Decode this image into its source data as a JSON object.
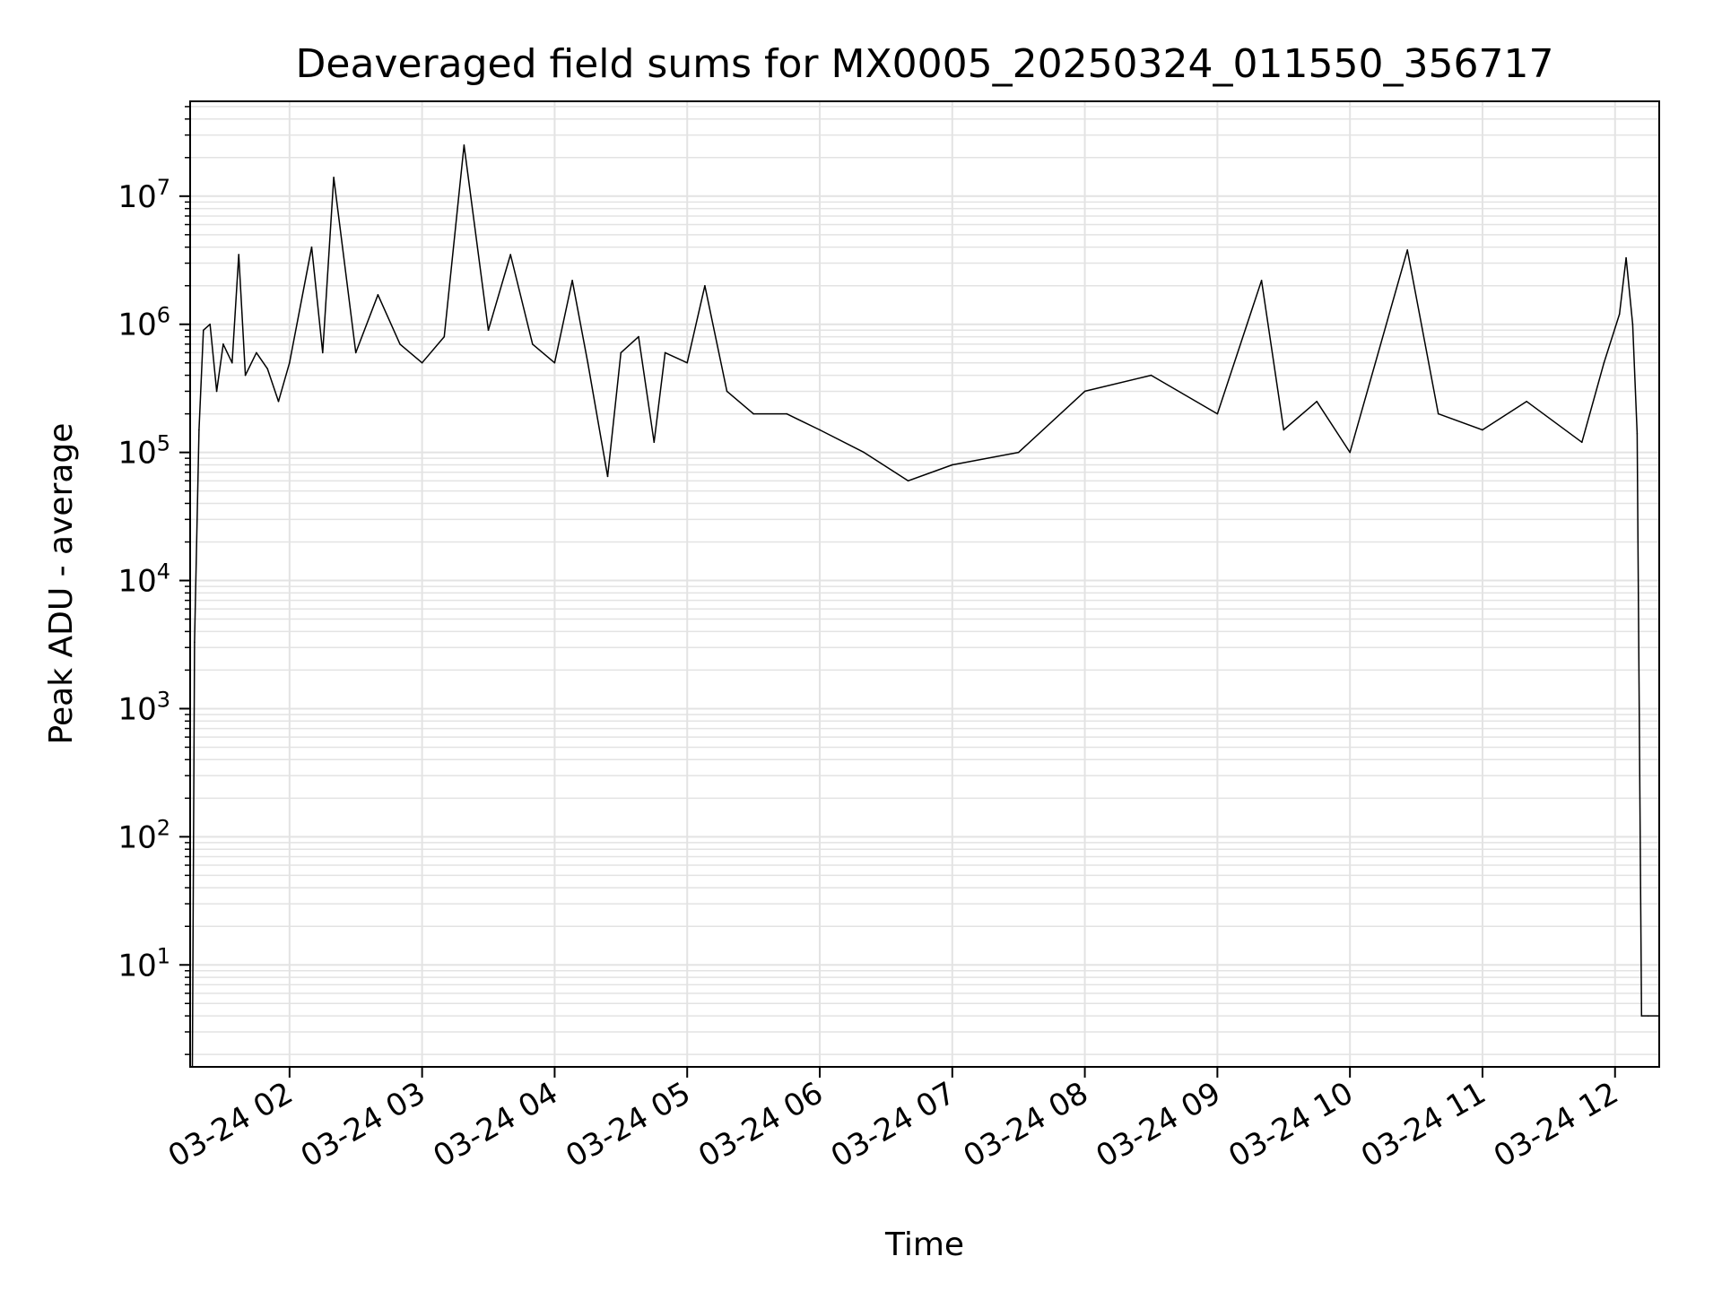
{
  "chart_data": {
    "type": "line",
    "title": "Deaveraged field sums for MX0005_20250324_011550_356717",
    "xlabel": "Time",
    "ylabel": "Peak ADU - average",
    "y_scale": "log",
    "ylim": [
      1.6,
      55000000
    ],
    "xlim": [
      "2025-03-24 01:15",
      "2025-03-24 12:20"
    ],
    "grid": true,
    "x_tick_labels": [
      "03-24 02",
      "03-24 03",
      "03-24 04",
      "03-24 05",
      "03-24 06",
      "03-24 07",
      "03-24 08",
      "03-24 09",
      "03-24 10",
      "03-24 11",
      "03-24 12"
    ],
    "x_tick_times": [
      "2025-03-24 02:00",
      "2025-03-24 03:00",
      "2025-03-24 04:00",
      "2025-03-24 05:00",
      "2025-03-24 06:00",
      "2025-03-24 07:00",
      "2025-03-24 08:00",
      "2025-03-24 09:00",
      "2025-03-24 10:00",
      "2025-03-24 11:00",
      "2025-03-24 12:00"
    ],
    "y_tick_values": [
      10,
      100,
      1000,
      10000,
      100000,
      1000000,
      10000000
    ],
    "y_tick_labels": [
      {
        "base": "10",
        "exp": "1"
      },
      {
        "base": "10",
        "exp": "2"
      },
      {
        "base": "10",
        "exp": "3"
      },
      {
        "base": "10",
        "exp": "4"
      },
      {
        "base": "10",
        "exp": "5"
      },
      {
        "base": "10",
        "exp": "6"
      },
      {
        "base": "10",
        "exp": "7"
      }
    ],
    "series": [
      {
        "color": "#000000",
        "x": [
          "2025-03-24 01:16",
          "2025-03-24 01:17",
          "2025-03-24 01:19",
          "2025-03-24 01:21",
          "2025-03-24 01:24",
          "2025-03-24 01:27",
          "2025-03-24 01:30",
          "2025-03-24 01:34",
          "2025-03-24 01:37",
          "2025-03-24 01:40",
          "2025-03-24 01:45",
          "2025-03-24 01:50",
          "2025-03-24 01:55",
          "2025-03-24 02:00",
          "2025-03-24 02:10",
          "2025-03-24 02:15",
          "2025-03-24 02:20",
          "2025-03-24 02:30",
          "2025-03-24 02:40",
          "2025-03-24 02:50",
          "2025-03-24 03:00",
          "2025-03-24 03:10",
          "2025-03-24 03:19",
          "2025-03-24 03:30",
          "2025-03-24 03:40",
          "2025-03-24 03:50",
          "2025-03-24 04:00",
          "2025-03-24 04:08",
          "2025-03-24 04:15",
          "2025-03-24 04:24",
          "2025-03-24 04:30",
          "2025-03-24 04:38",
          "2025-03-24 04:45",
          "2025-03-24 04:50",
          "2025-03-24 05:00",
          "2025-03-24 05:08",
          "2025-03-24 05:18",
          "2025-03-24 05:30",
          "2025-03-24 05:45",
          "2025-03-24 06:00",
          "2025-03-24 06:20",
          "2025-03-24 06:40",
          "2025-03-24 07:00",
          "2025-03-24 07:30",
          "2025-03-24 08:00",
          "2025-03-24 08:30",
          "2025-03-24 09:00",
          "2025-03-24 09:20",
          "2025-03-24 09:30",
          "2025-03-24 09:45",
          "2025-03-24 10:00",
          "2025-03-24 10:26",
          "2025-03-24 10:40",
          "2025-03-24 11:00",
          "2025-03-24 11:20",
          "2025-03-24 11:45",
          "2025-03-24 11:55",
          "2025-03-24 12:02",
          "2025-03-24 12:05",
          "2025-03-24 12:08",
          "2025-03-24 12:10",
          "2025-03-24 12:12",
          "2025-03-24 12:15",
          "2025-03-24 12:20"
        ],
        "y": [
          1.6,
          3300,
          150000,
          900000,
          1000000,
          300000,
          700000,
          500000,
          3500000,
          400000,
          600000,
          450000,
          250000,
          500000,
          4000000,
          600000,
          14000000,
          600000,
          1700000,
          700000,
          500000,
          800000,
          25000000,
          900000,
          3500000,
          700000,
          500000,
          2200000,
          500000,
          65000,
          600000,
          800000,
          120000,
          600000,
          500000,
          2000000,
          300000,
          200000,
          200000,
          150000,
          100000,
          60000,
          80000,
          100000,
          300000,
          400000,
          200000,
          2200000,
          150000,
          250000,
          100000,
          3800000,
          200000,
          150000,
          250000,
          120000,
          500000,
          1200000,
          3300000,
          1000000,
          140000,
          4,
          4,
          4
        ]
      }
    ]
  }
}
